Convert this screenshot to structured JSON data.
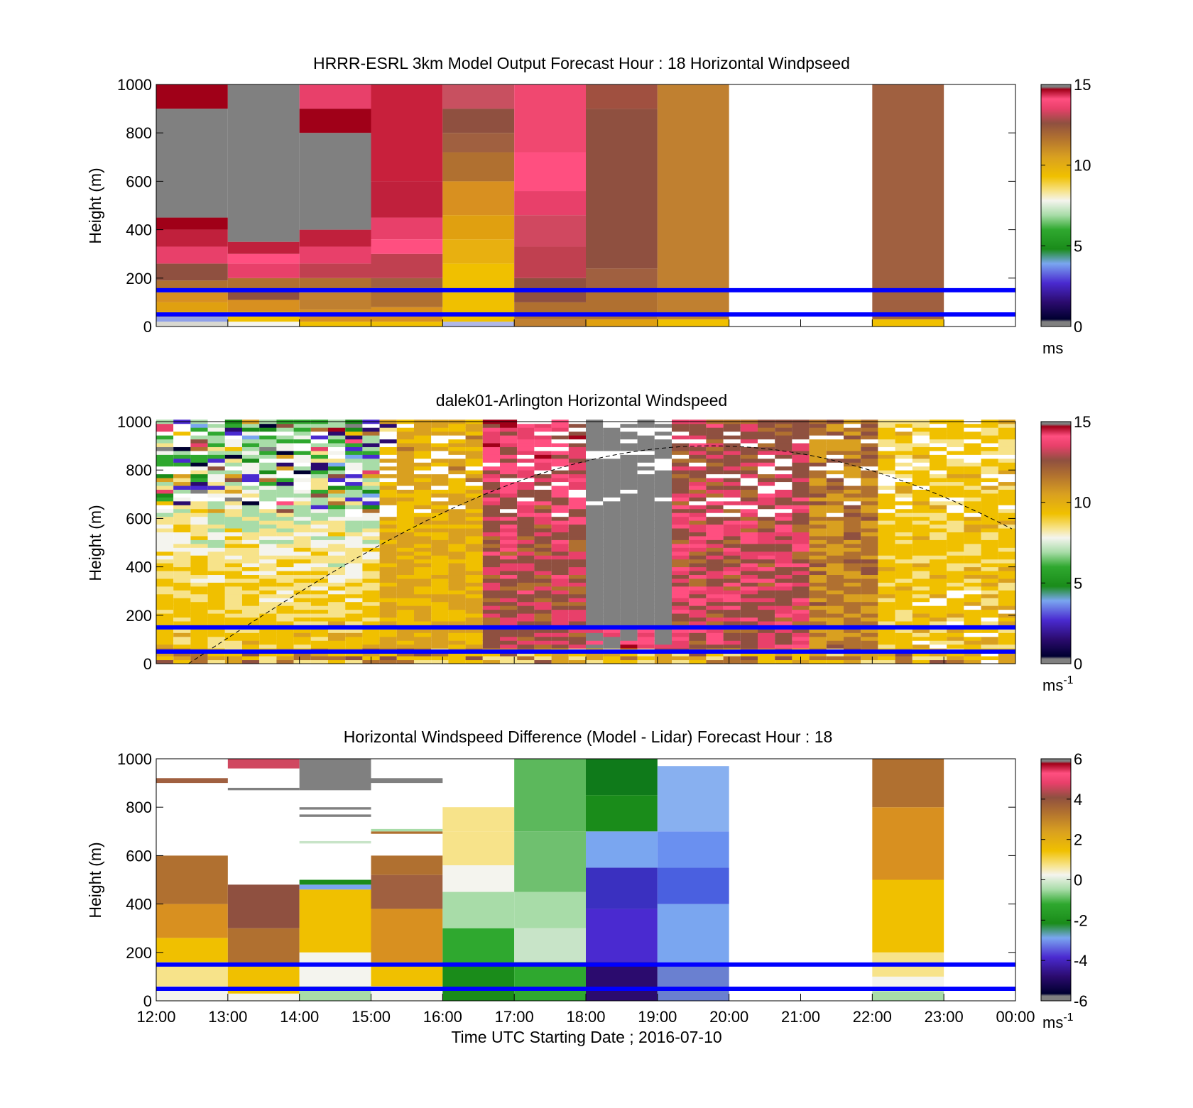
{
  "figure": {
    "xlabel": "Time UTC  Starting Date ; 2016-07-10",
    "x_tick_labels": [
      "12:00",
      "13:00",
      "14:00",
      "15:00",
      "16:00",
      "17:00",
      "18:00",
      "19:00",
      "20:00",
      "21:00",
      "22:00",
      "23:00",
      "00:00"
    ],
    "y_tick_labels": [
      "0",
      "200",
      "400",
      "600",
      "800",
      "1000"
    ],
    "ylabel": "Height (m)",
    "guide_lines_height_m": [
      50,
      150
    ],
    "guide_line_color": "#0000ff"
  },
  "colormap": {
    "stops": [
      [
        0.0,
        "#808080"
      ],
      [
        0.02,
        "#808080"
      ],
      [
        0.03,
        "#000030"
      ],
      [
        0.1,
        "#2b0b6e"
      ],
      [
        0.18,
        "#4a2ad0"
      ],
      [
        0.26,
        "#7aa6f0"
      ],
      [
        0.32,
        "#1a8c1a"
      ],
      [
        0.4,
        "#2fa82f"
      ],
      [
        0.46,
        "#a8dca8"
      ],
      [
        0.52,
        "#f4f4ee"
      ],
      [
        0.56,
        "#f7e38a"
      ],
      [
        0.62,
        "#f0c000"
      ],
      [
        0.7,
        "#d9a020"
      ],
      [
        0.78,
        "#b07030"
      ],
      [
        0.84,
        "#8f5040"
      ],
      [
        0.9,
        "#e8406a"
      ],
      [
        0.94,
        "#ff4f80"
      ],
      [
        0.98,
        "#a00018"
      ],
      [
        0.99,
        "#808080"
      ],
      [
        1.0,
        "#808080"
      ]
    ]
  },
  "panels": [
    {
      "id": "model",
      "title": "HRRR-ESRL 3km Model Output   Forecast Hour : 18 Horizontal Windpseed",
      "colorbar": {
        "min": 0,
        "max": 15,
        "tick_labels": [
          "0",
          "5",
          "10",
          "15"
        ],
        "unit": "ms",
        "unit_exp": ""
      },
      "cells": [
        {
          "hour": 12,
          "top": 1000,
          "layers": [
            [
              0,
              20,
              "#d8d8d0"
            ],
            [
              20,
              40,
              "#8fa0e8"
            ],
            [
              40,
              60,
              "#f0c000"
            ],
            [
              60,
              100,
              "#e0a010"
            ],
            [
              100,
              140,
              "#d89020"
            ],
            [
              140,
              190,
              "#b07030"
            ],
            [
              190,
              260,
              "#8f5040"
            ],
            [
              260,
              330,
              "#e8406a"
            ],
            [
              330,
              400,
              "#c0203c"
            ],
            [
              400,
              450,
              "#a00018"
            ],
            [
              450,
              900,
              "#808080"
            ],
            [
              900,
              1000,
              "#a00018"
            ]
          ]
        },
        {
          "hour": 13,
          "top": 1000,
          "layers": [
            [
              0,
              20,
              "#f4f4ee"
            ],
            [
              20,
              60,
              "#f0c000"
            ],
            [
              60,
              110,
              "#d89020"
            ],
            [
              110,
              150,
              "#8f5040"
            ],
            [
              150,
              200,
              "#b07030"
            ],
            [
              200,
              260,
              "#e8406a"
            ],
            [
              260,
              300,
              "#ff4f80"
            ],
            [
              300,
              350,
              "#c0203c"
            ],
            [
              350,
              1000,
              "#808080"
            ]
          ]
        },
        {
          "hour": 14,
          "top": 1000,
          "layers": [
            [
              0,
              20,
              "#f0c000"
            ],
            [
              20,
              70,
              "#d89020"
            ],
            [
              70,
              140,
              "#c08030"
            ],
            [
              140,
              200,
              "#b07030"
            ],
            [
              200,
              260,
              "#c04050"
            ],
            [
              260,
              330,
              "#e8406a"
            ],
            [
              330,
              400,
              "#c0203c"
            ],
            [
              400,
              800,
              "#808080"
            ],
            [
              800,
              900,
              "#a00018"
            ],
            [
              900,
              1000,
              "#e8406a"
            ]
          ]
        },
        {
          "hour": 15,
          "top": 1000,
          "layers": [
            [
              0,
              20,
              "#f0c000"
            ],
            [
              20,
              80,
              "#d89020"
            ],
            [
              80,
              160,
              "#b07030"
            ],
            [
              160,
              200,
              "#a06040"
            ],
            [
              200,
              300,
              "#c04050"
            ],
            [
              300,
              360,
              "#ff4f80"
            ],
            [
              360,
              450,
              "#e8406a"
            ],
            [
              450,
              600,
              "#c0203c"
            ],
            [
              600,
              1000,
              "#c8203c"
            ]
          ]
        },
        {
          "hour": 16,
          "top": 1000,
          "layers": [
            [
              0,
              20,
              "#b0b8e8"
            ],
            [
              20,
              140,
              "#f0c000"
            ],
            [
              140,
              260,
              "#f0c000"
            ],
            [
              260,
              360,
              "#e8b010"
            ],
            [
              360,
              460,
              "#e0a010"
            ],
            [
              460,
              600,
              "#d89020"
            ],
            [
              600,
              720,
              "#b07030"
            ],
            [
              720,
              800,
              "#a06040"
            ],
            [
              800,
              900,
              "#8f5040"
            ],
            [
              900,
              1000,
              "#c85060"
            ]
          ]
        },
        {
          "hour": 17,
          "top": 1000,
          "layers": [
            [
              0,
              30,
              "#c08030"
            ],
            [
              30,
              100,
              "#b07030"
            ],
            [
              100,
              200,
              "#8f5040"
            ],
            [
              200,
              330,
              "#c04050"
            ],
            [
              330,
              460,
              "#d04860"
            ],
            [
              460,
              560,
              "#e8406a"
            ],
            [
              560,
              720,
              "#ff4f80"
            ],
            [
              720,
              1000,
              "#f04870"
            ]
          ]
        },
        {
          "hour": 18,
          "top": 1000,
          "layers": [
            [
              0,
              30,
              "#e0a010"
            ],
            [
              30,
              150,
              "#b07030"
            ],
            [
              150,
              240,
              "#a06040"
            ],
            [
              240,
              900,
              "#8f5040"
            ],
            [
              900,
              1000,
              "#a05040"
            ]
          ]
        },
        {
          "hour": 19,
          "top": 1000,
          "layers": [
            [
              0,
              30,
              "#f0c000"
            ],
            [
              30,
              1000,
              "#c08030"
            ]
          ]
        },
        {
          "hour": 22,
          "top": 1000,
          "layers": [
            [
              0,
              30,
              "#f0c000"
            ],
            [
              30,
              1000,
              "#a06040"
            ]
          ]
        }
      ]
    },
    {
      "id": "lidar",
      "title": "dalek01-Arlington  Horizontal Windspeed",
      "colorbar": {
        "min": 0,
        "max": 15,
        "tick_labels": [
          "0",
          "5",
          "10",
          "15"
        ],
        "unit": "ms",
        "unit_exp": "-1"
      },
      "dashed_curve": {
        "peak_height_m": 900,
        "peak_hour": 19.75
      }
    },
    {
      "id": "difference",
      "title": "Horizontal Windspeed Difference (Model - Lidar) Forecast Hour : 18",
      "colorbar": {
        "min": -6,
        "max": 6,
        "tick_labels": [
          "-6",
          "-4",
          "-2",
          "0",
          "2",
          "4",
          "6"
        ],
        "unit": "ms",
        "unit_exp": "-1"
      },
      "cells": [
        {
          "hour": 12,
          "top": 600,
          "layers": [
            [
              0,
              60,
              "#f4f4ee"
            ],
            [
              60,
              160,
              "#f7e38a"
            ],
            [
              160,
              260,
              "#f0c000"
            ],
            [
              260,
              400,
              "#d89020"
            ],
            [
              400,
              600,
              "#b07030"
            ],
            [
              900,
              920,
              "#a06040"
            ]
          ]
        },
        {
          "hour": 13,
          "top": 480,
          "layers": [
            [
              0,
              30,
              "#f4f4ee"
            ],
            [
              30,
              150,
              "#f0c000"
            ],
            [
              150,
              300,
              "#b07030"
            ],
            [
              300,
              480,
              "#8f5040"
            ],
            [
              870,
              880,
              "#808080"
            ],
            [
              960,
              1000,
              "#d04860"
            ]
          ]
        },
        {
          "hour": 14,
          "top": 500,
          "layers": [
            [
              0,
              60,
              "#a8dca8"
            ],
            [
              60,
              200,
              "#f4f4ee"
            ],
            [
              200,
              460,
              "#f0c000"
            ],
            [
              460,
              480,
              "#7aa6f0"
            ],
            [
              480,
              500,
              "#1a8c1a"
            ],
            [
              650,
              660,
              "#c8e4c8"
            ],
            [
              760,
              770,
              "#808080"
            ],
            [
              790,
              800,
              "#808080"
            ],
            [
              870,
              1000,
              "#808080"
            ]
          ]
        },
        {
          "hour": 15,
          "top": 600,
          "layers": [
            [
              0,
              60,
              "#f4f4ee"
            ],
            [
              60,
              160,
              "#f0c000"
            ],
            [
              160,
              380,
              "#d89020"
            ],
            [
              380,
              520,
              "#a06040"
            ],
            [
              520,
              600,
              "#b07030"
            ],
            [
              690,
              700,
              "#b07030"
            ],
            [
              700,
              710,
              "#a8dca8"
            ],
            [
              900,
              920,
              "#808080"
            ]
          ]
        },
        {
          "hour": 16,
          "top": 800,
          "layers": [
            [
              0,
              160,
              "#1a8c1a"
            ],
            [
              160,
              300,
              "#2fa82f"
            ],
            [
              300,
              450,
              "#a8dca8"
            ],
            [
              450,
              560,
              "#f4f4ee"
            ],
            [
              560,
              700,
              "#f7e38a"
            ],
            [
              700,
              800,
              "#f7e38a"
            ]
          ]
        },
        {
          "hour": 17,
          "top": 1000,
          "layers": [
            [
              0,
              160,
              "#2fa82f"
            ],
            [
              160,
              300,
              "#c8e4c8"
            ],
            [
              300,
              450,
              "#a8dca8"
            ],
            [
              450,
              700,
              "#6fc06f"
            ],
            [
              700,
              1000,
              "#5cb85c"
            ]
          ]
        },
        {
          "hour": 18,
          "top": 1000,
          "layers": [
            [
              0,
              160,
              "#2b0b6e"
            ],
            [
              160,
              380,
              "#4a2ad0"
            ],
            [
              380,
              550,
              "#3a30c0"
            ],
            [
              550,
              700,
              "#7aa6f0"
            ],
            [
              700,
              850,
              "#1a8c1a"
            ],
            [
              850,
              1000,
              "#0f7a1a"
            ]
          ]
        },
        {
          "hour": 19,
          "top": 970,
          "layers": [
            [
              0,
              150,
              "#6a80d0"
            ],
            [
              150,
              400,
              "#7aa6f0"
            ],
            [
              400,
              550,
              "#4a60e0"
            ],
            [
              550,
              700,
              "#6a90f0"
            ],
            [
              700,
              970,
              "#88b0f0"
            ]
          ]
        },
        {
          "hour": 22,
          "top": 1000,
          "layers": [
            [
              0,
              40,
              "#a8dca8"
            ],
            [
              40,
              100,
              "#f4f4ee"
            ],
            [
              100,
              200,
              "#f7e38a"
            ],
            [
              200,
              500,
              "#f0c000"
            ],
            [
              500,
              800,
              "#d89020"
            ],
            [
              800,
              1000,
              "#b07030"
            ]
          ]
        }
      ]
    }
  ]
}
